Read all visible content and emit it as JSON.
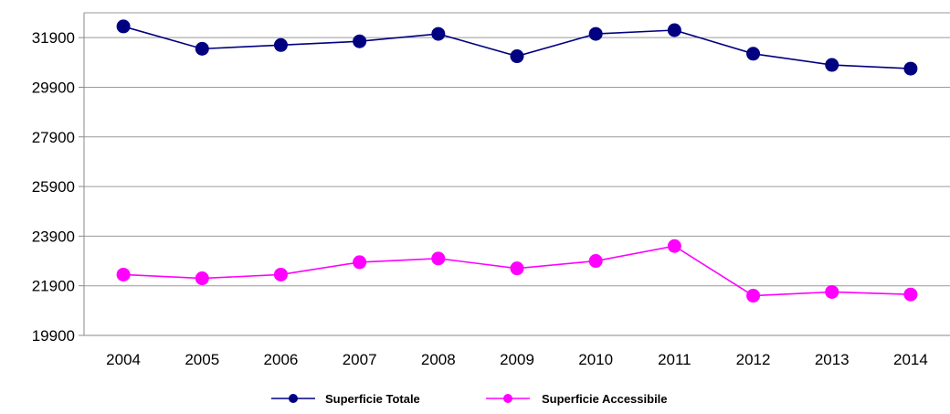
{
  "chart_data": {
    "type": "line",
    "categories": [
      "2004",
      "2005",
      "2006",
      "2007",
      "2008",
      "2009",
      "2010",
      "2011",
      "2012",
      "2013",
      "2014"
    ],
    "ylim": [
      19900,
      32900
    ],
    "yticks": [
      19900,
      21900,
      23900,
      25900,
      27900,
      29900,
      31900
    ],
    "grid": true,
    "legend": "bottom",
    "series": [
      {
        "name": "Superficie  Totale",
        "color": "#000080",
        "values": [
          32350,
          31450,
          31600,
          31750,
          32050,
          31150,
          32050,
          32200,
          31250,
          30800,
          30650
        ]
      },
      {
        "name": "Superficie Accessibile",
        "color": "#FF00FF",
        "values": [
          22350,
          22200,
          22350,
          22850,
          23000,
          22600,
          22900,
          23500,
          21500,
          21650,
          21550
        ]
      }
    ]
  }
}
